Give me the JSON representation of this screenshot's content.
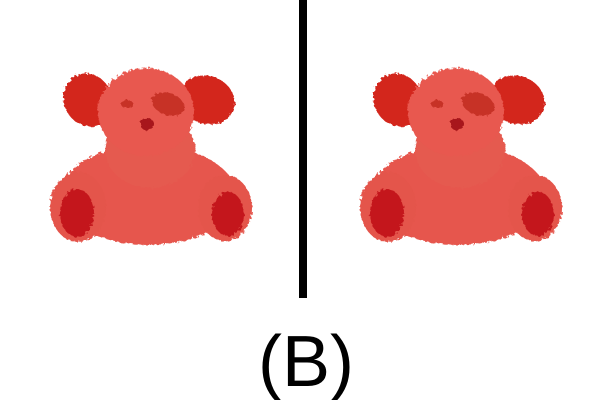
{
  "label": "(B)"
}
